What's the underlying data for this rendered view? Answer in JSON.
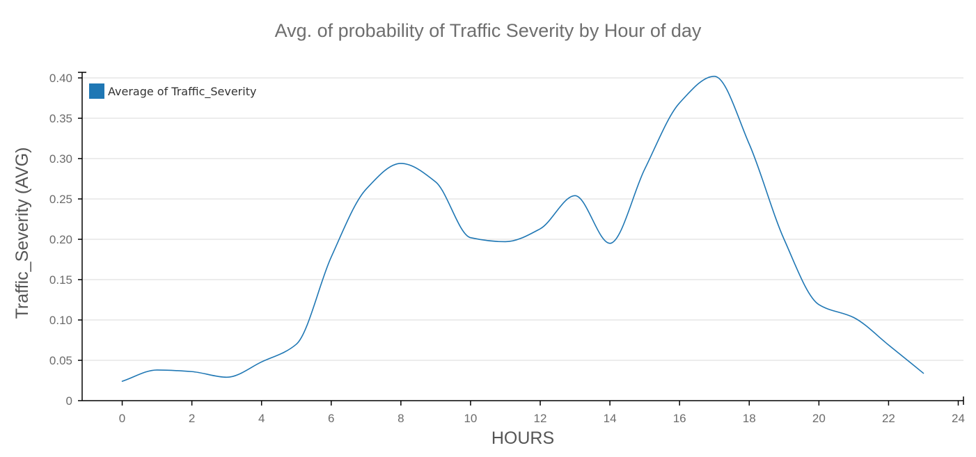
{
  "chart_data": {
    "type": "line",
    "title": "Avg. of probability of Traffic Severity by Hour of day",
    "xlabel": "HOURS",
    "ylabel": "Traffic_Severity (AVG)",
    "xlim": [
      -1.15,
      24.15
    ],
    "ylim": [
      0,
      0.4
    ],
    "x_ticks": [
      0,
      2,
      4,
      6,
      8,
      10,
      12,
      14,
      16,
      18,
      20,
      22,
      24
    ],
    "y_ticks": [
      0,
      0.05,
      0.1,
      0.15,
      0.2,
      0.25,
      0.3,
      0.35,
      0.4
    ],
    "x_tick_labels": [
      "0",
      "2",
      "4",
      "6",
      "8",
      "10",
      "12",
      "14",
      "16",
      "18",
      "20",
      "22",
      "24"
    ],
    "y_tick_labels": [
      "0",
      "0.05",
      "0.10",
      "0.15",
      "0.20",
      "0.25",
      "0.30",
      "0.35",
      "0.40"
    ],
    "grid": true,
    "legend_position": "top-left",
    "series": [
      {
        "name": "Average of Traffic_Severity",
        "color": "#1f77b4",
        "x": [
          0,
          1,
          2,
          3,
          4,
          5,
          6,
          7,
          8,
          9,
          10,
          11,
          12,
          13,
          14,
          15,
          16,
          17,
          18,
          19,
          20,
          21,
          22,
          23
        ],
        "values": [
          0.024,
          0.038,
          0.036,
          0.029,
          0.048,
          0.07,
          0.178,
          0.262,
          0.294,
          0.271,
          0.202,
          0.197,
          0.213,
          0.254,
          0.195,
          0.287,
          0.369,
          0.402,
          0.318,
          0.2,
          0.119,
          0.103,
          0.069,
          0.034
        ]
      }
    ]
  }
}
